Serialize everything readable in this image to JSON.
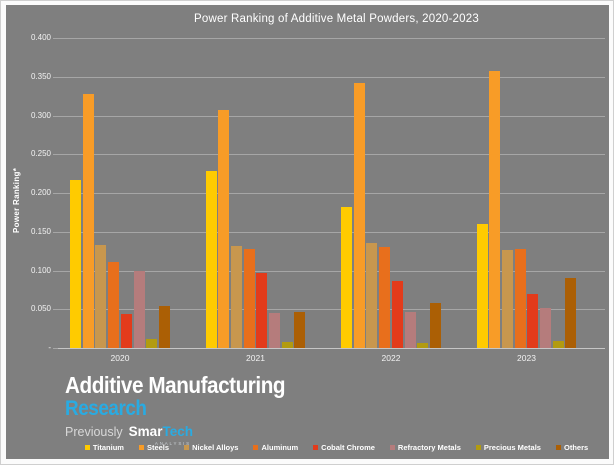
{
  "frame": {
    "panel_background": "#7f7f7f",
    "border_color": "#ffffff"
  },
  "chart_data": {
    "type": "bar",
    "title": "Power Ranking of Additive Metal Powders, 2020-2023",
    "xlabel": "",
    "ylabel": "Power Ranking*",
    "ylim": [
      0,
      0.4
    ],
    "grid": true,
    "legend_position": "bottom",
    "categories": [
      "2020",
      "2021",
      "2022",
      "2023"
    ],
    "series": [
      {
        "name": "Titanium",
        "color": "#ffcb00",
        "values": [
          0.217,
          0.228,
          0.182,
          0.16
        ]
      },
      {
        "name": "Steels",
        "color": "#f89c27",
        "values": [
          0.328,
          0.307,
          0.342,
          0.358
        ]
      },
      {
        "name": "Nickel Alloys",
        "color": "#c8974e",
        "values": [
          0.133,
          0.132,
          0.135,
          0.126
        ]
      },
      {
        "name": "Aluminum",
        "color": "#e86f1c",
        "values": [
          0.111,
          0.128,
          0.13,
          0.128
        ]
      },
      {
        "name": "Cobalt Chrome",
        "color": "#e33b1b",
        "values": [
          0.044,
          0.097,
          0.087,
          0.07
        ]
      },
      {
        "name": "Refractory Metals",
        "color": "#b57c7c",
        "values": [
          0.099,
          0.045,
          0.046,
          0.052
        ]
      },
      {
        "name": "Precious Metals",
        "color": "#b29b10",
        "values": [
          0.012,
          0.008,
          0.007,
          0.009
        ]
      },
      {
        "name": "Others",
        "color": "#ab5f05",
        "values": [
          0.054,
          0.047,
          0.058,
          0.09
        ]
      }
    ],
    "yticks": [
      {
        "v": 0.4,
        "label": "0.400"
      },
      {
        "v": 0.35,
        "label": "0.350"
      },
      {
        "v": 0.3,
        "label": "0.300"
      },
      {
        "v": 0.25,
        "label": "0.250"
      },
      {
        "v": 0.2,
        "label": "0.200"
      },
      {
        "v": 0.15,
        "label": "0.150"
      },
      {
        "v": 0.1,
        "label": "0.100"
      },
      {
        "v": 0.05,
        "label": "0.050"
      },
      {
        "v": 0.0,
        "label": "-"
      }
    ]
  },
  "branding": {
    "line1": "Additive Manufacturing",
    "line2": "Research",
    "previously": "Previously",
    "smartech_white": "Smar",
    "smartech_cyan": "Tech",
    "smartech_sub": "ANALYSIS",
    "cyan": "#29abe2"
  }
}
